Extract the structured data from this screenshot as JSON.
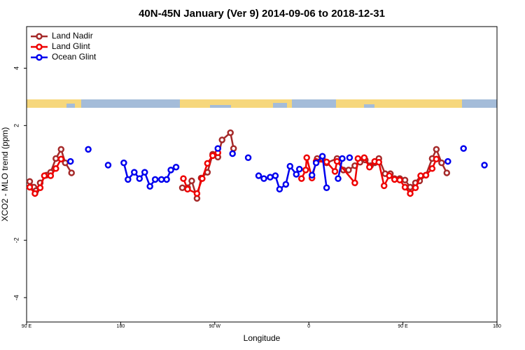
{
  "chart_data": {
    "type": "line",
    "title": "40N-45N January (Ver 9)   2014-09-06 to 2018-12-31",
    "x_label": "Longitude",
    "y_label": "XCO2 - MLO trend (ppm)",
    "xlim": [
      90,
      540
    ],
    "xticks": [
      {
        "value": 90,
        "label": "90 E"
      },
      {
        "value": 180,
        "label": "180"
      },
      {
        "value": 270,
        "label": "90 W"
      },
      {
        "value": 360,
        "label": "0"
      },
      {
        "value": 450,
        "label": "90 E"
      },
      {
        "value": 540,
        "label": "180"
      }
    ],
    "ylim": [
      -4.85,
      5.45
    ],
    "yticks": [
      -4,
      -2,
      2,
      4
    ],
    "legend": "top-left",
    "series": [
      {
        "name": "Land Nadir",
        "color": "#a52a2a",
        "x": [
          93,
          97,
          99,
          103,
          109,
          113,
          118,
          123,
          127,
          133,
          null,
          239,
          244,
          248,
          253,
          257,
          263,
          268,
          273,
          277,
          285,
          288,
          null,
          368,
          373,
          377,
          387,
          393,
          398,
          404,
          409,
          414,
          419,
          423,
          427,
          433,
          438,
          442,
          447,
          452,
          457,
          462,
          466,
          472,
          478,
          482,
          487,
          492
        ],
        "values": [
          0.05,
          -0.15,
          -0.27,
          0.0,
          0.27,
          0.37,
          0.85,
          1.17,
          0.7,
          0.35,
          null,
          -0.17,
          -0.17,
          0.07,
          -0.54,
          0.17,
          0.37,
          1.0,
          0.9,
          1.5,
          1.75,
          1.2,
          null,
          0.85,
          0.85,
          0.7,
          0.85,
          0.45,
          0.45,
          0.6,
          0.72,
          0.8,
          0.6,
          0.7,
          0.85,
          0.32,
          0.32,
          0.15,
          0.15,
          0.1,
          -0.15,
          0.0,
          0.07,
          0.27,
          0.85,
          1.17,
          0.7,
          0.35
        ]
      },
      {
        "name": "Land Glint",
        "color": "#ee0000",
        "x": [
          93,
          98,
          103,
          107,
          113,
          118,
          123,
          null,
          240,
          244,
          253,
          258,
          263,
          268,
          273,
          null,
          353,
          357,
          358,
          363,
          367,
          377,
          385,
          387,
          404,
          407,
          413,
          418,
          423,
          427,
          432,
          437,
          442,
          447,
          452,
          457,
          462,
          467,
          472,
          478,
          482
        ],
        "values": [
          -0.15,
          -0.37,
          -0.17,
          0.25,
          0.25,
          0.5,
          0.83,
          null,
          0.15,
          -0.22,
          -0.37,
          0.15,
          0.68,
          0.95,
          1.05,
          null,
          0.15,
          0.45,
          0.88,
          0.17,
          0.75,
          0.73,
          0.4,
          0.75,
          0.0,
          0.85,
          0.88,
          0.55,
          0.75,
          0.72,
          -0.1,
          0.25,
          0.12,
          0.1,
          -0.15,
          -0.37,
          -0.17,
          0.25,
          0.27,
          0.5,
          0.83
        ]
      },
      {
        "name": "Ocean Glint",
        "color": "#0000ee",
        "x": [
          132,
          null,
          149,
          null,
          168,
          null,
          183,
          187,
          193,
          198,
          203,
          208,
          213,
          219,
          224,
          228,
          233,
          null,
          273,
          null,
          287,
          null,
          302,
          null,
          312,
          317,
          323,
          328,
          332,
          338,
          342,
          348,
          351,
          null,
          363,
          367,
          373,
          377,
          null,
          388,
          392,
          null,
          399,
          null,
          493,
          null,
          508,
          null,
          528
        ],
        "values": [
          0.75,
          null,
          1.17,
          null,
          0.62,
          null,
          0.7,
          0.12,
          0.37,
          0.15,
          0.37,
          -0.12,
          0.12,
          0.12,
          0.12,
          0.45,
          0.55,
          null,
          1.2,
          null,
          1.02,
          null,
          0.88,
          null,
          0.25,
          0.15,
          0.2,
          0.25,
          -0.22,
          -0.05,
          0.58,
          0.3,
          0.48,
          null,
          0.27,
          0.7,
          0.93,
          -0.17,
          null,
          0.15,
          0.85,
          null,
          0.88,
          null,
          0.75,
          null,
          1.2,
          null,
          0.62
        ]
      }
    ]
  }
}
